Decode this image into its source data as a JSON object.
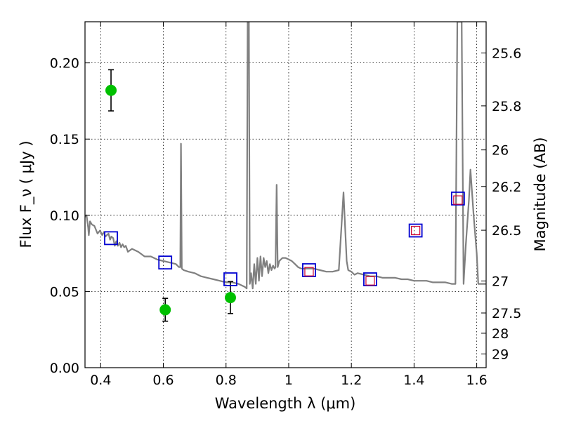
{
  "chart_data": {
    "type": "scatter",
    "title": "",
    "xlabel": "Wavelength  λ (μm)",
    "ylabel": "Flux  F_ν  ( μJy )",
    "ylabel_right": "Magnitude (AB)",
    "xlim": [
      0.35,
      1.63
    ],
    "ylim": [
      0.0,
      0.227
    ],
    "x_ticks": [
      0.4,
      0.6,
      0.8,
      1.0,
      1.2,
      1.4,
      1.6
    ],
    "x_tick_labels": [
      "0.4",
      "0.6",
      "0.8",
      "1",
      "1.2",
      "1.4",
      "1.6"
    ],
    "y_ticks": [
      0.0,
      0.05,
      0.1,
      0.15,
      0.2
    ],
    "y_tick_labels": [
      "0.00",
      "0.05",
      "0.10",
      "0.15",
      "0.20"
    ],
    "y2_ticks": [
      {
        "label": "25.6",
        "flux": 0.2065
      },
      {
        "label": "25.8",
        "flux": 0.1718
      },
      {
        "label": "26",
        "flux": 0.1429
      },
      {
        "label": "26.2",
        "flux": 0.1189
      },
      {
        "label": "26.5",
        "flux": 0.0902
      },
      {
        "label": "27",
        "flux": 0.0569
      },
      {
        "label": "27.5",
        "flux": 0.0359
      },
      {
        "label": "28",
        "flux": 0.0226
      },
      {
        "label": "29",
        "flux": 0.009
      }
    ],
    "grid": true,
    "colors": {
      "model": "#808080",
      "obs_points": "#00c000",
      "model_squares": "#0000d0",
      "obs_squares": "#d00030",
      "errorbar": "#000000"
    },
    "series": [
      {
        "kind": "line",
        "points": [
          [
            0.35,
            0.099
          ],
          [
            0.355,
            0.1
          ],
          [
            0.36,
            0.092
          ],
          [
            0.362,
            0.087
          ],
          [
            0.366,
            0.096
          ],
          [
            0.372,
            0.094
          ],
          [
            0.38,
            0.093
          ],
          [
            0.39,
            0.088
          ],
          [
            0.398,
            0.09
          ],
          [
            0.405,
            0.087
          ],
          [
            0.41,
            0.089
          ],
          [
            0.415,
            0.086
          ],
          [
            0.42,
            0.087
          ],
          [
            0.425,
            0.088
          ],
          [
            0.43,
            0.084
          ],
          [
            0.434,
            0.086
          ],
          [
            0.44,
            0.085
          ],
          [
            0.445,
            0.08
          ],
          [
            0.45,
            0.083
          ],
          [
            0.455,
            0.08
          ],
          [
            0.46,
            0.082
          ],
          [
            0.465,
            0.079
          ],
          [
            0.47,
            0.081
          ],
          [
            0.475,
            0.079
          ],
          [
            0.48,
            0.08
          ],
          [
            0.487,
            0.076
          ],
          [
            0.5,
            0.078
          ],
          [
            0.52,
            0.076
          ],
          [
            0.54,
            0.073
          ],
          [
            0.56,
            0.073
          ],
          [
            0.58,
            0.071
          ],
          [
            0.6,
            0.07
          ],
          [
            0.62,
            0.069
          ],
          [
            0.64,
            0.068
          ],
          [
            0.65,
            0.066
          ],
          [
            0.654,
            0.066
          ],
          [
            0.6563,
            0.147
          ],
          [
            0.659,
            0.065
          ],
          [
            0.665,
            0.064
          ],
          [
            0.68,
            0.063
          ],
          [
            0.7,
            0.062
          ],
          [
            0.72,
            0.06
          ],
          [
            0.74,
            0.059
          ],
          [
            0.76,
            0.058
          ],
          [
            0.78,
            0.057
          ],
          [
            0.8,
            0.056
          ],
          [
            0.82,
            0.056
          ],
          [
            0.84,
            0.055
          ],
          [
            0.86,
            0.053
          ],
          [
            0.866,
            0.052
          ],
          [
            0.869,
            0.227
          ],
          [
            0.873,
            0.227
          ],
          [
            0.876,
            0.055
          ],
          [
            0.88,
            0.062
          ],
          [
            0.885,
            0.052
          ],
          [
            0.89,
            0.068
          ],
          [
            0.895,
            0.055
          ],
          [
            0.9,
            0.072
          ],
          [
            0.905,
            0.057
          ],
          [
            0.91,
            0.073
          ],
          [
            0.915,
            0.06
          ],
          [
            0.92,
            0.072
          ],
          [
            0.925,
            0.066
          ],
          [
            0.93,
            0.07
          ],
          [
            0.935,
            0.062
          ],
          [
            0.94,
            0.068
          ],
          [
            0.945,
            0.064
          ],
          [
            0.95,
            0.067
          ],
          [
            0.955,
            0.065
          ],
          [
            0.958,
            0.066
          ],
          [
            0.9615,
            0.12
          ],
          [
            0.965,
            0.066
          ],
          [
            0.97,
            0.07
          ],
          [
            0.98,
            0.072
          ],
          [
            0.99,
            0.072
          ],
          [
            1.0,
            0.071
          ],
          [
            1.01,
            0.07
          ],
          [
            1.02,
            0.068
          ],
          [
            1.03,
            0.066
          ],
          [
            1.04,
            0.065
          ],
          [
            1.05,
            0.065
          ],
          [
            1.06,
            0.065
          ],
          [
            1.08,
            0.065
          ],
          [
            1.1,
            0.064
          ],
          [
            1.12,
            0.063
          ],
          [
            1.14,
            0.063
          ],
          [
            1.16,
            0.064
          ],
          [
            1.175,
            0.115
          ],
          [
            1.185,
            0.07
          ],
          [
            1.19,
            0.064
          ],
          [
            1.2,
            0.063
          ],
          [
            1.21,
            0.061
          ],
          [
            1.22,
            0.062
          ],
          [
            1.24,
            0.061
          ],
          [
            1.26,
            0.06
          ],
          [
            1.28,
            0.06
          ],
          [
            1.3,
            0.059
          ],
          [
            1.32,
            0.059
          ],
          [
            1.34,
            0.059
          ],
          [
            1.36,
            0.058
          ],
          [
            1.38,
            0.058
          ],
          [
            1.4,
            0.057
          ],
          [
            1.42,
            0.057
          ],
          [
            1.44,
            0.057
          ],
          [
            1.46,
            0.056
          ],
          [
            1.48,
            0.056
          ],
          [
            1.5,
            0.056
          ],
          [
            1.52,
            0.055
          ],
          [
            1.532,
            0.055
          ],
          [
            1.534,
            0.11
          ],
          [
            1.538,
            0.227
          ],
          [
            1.552,
            0.227
          ],
          [
            1.556,
            0.11
          ],
          [
            1.558,
            0.055
          ],
          [
            1.565,
            0.08
          ],
          [
            1.575,
            0.11
          ],
          [
            1.58,
            0.13
          ],
          [
            1.59,
            0.1
          ],
          [
            1.6,
            0.075
          ],
          [
            1.605,
            0.055
          ],
          [
            1.615,
            0.055
          ],
          [
            1.63,
            0.055
          ]
        ]
      },
      {
        "kind": "errorbar",
        "points": [
          {
            "x": 0.433,
            "y": 0.182,
            "yerr": 0.0135
          },
          {
            "x": 0.606,
            "y": 0.038,
            "yerr": 0.0075
          },
          {
            "x": 0.814,
            "y": 0.046,
            "yerr": 0.0105
          }
        ]
      },
      {
        "kind": "squares-model",
        "points": [
          [
            0.433,
            0.085
          ],
          [
            0.606,
            0.069
          ],
          [
            0.814,
            0.058
          ],
          [
            1.065,
            0.064
          ],
          [
            1.26,
            0.058
          ],
          [
            1.405,
            0.09
          ],
          [
            1.54,
            0.111
          ]
        ]
      },
      {
        "kind": "squares-observed",
        "points": [
          [
            1.065,
            0.063
          ],
          [
            1.26,
            0.057
          ],
          [
            1.405,
            0.09
          ],
          [
            1.54,
            0.11
          ]
        ]
      }
    ]
  }
}
